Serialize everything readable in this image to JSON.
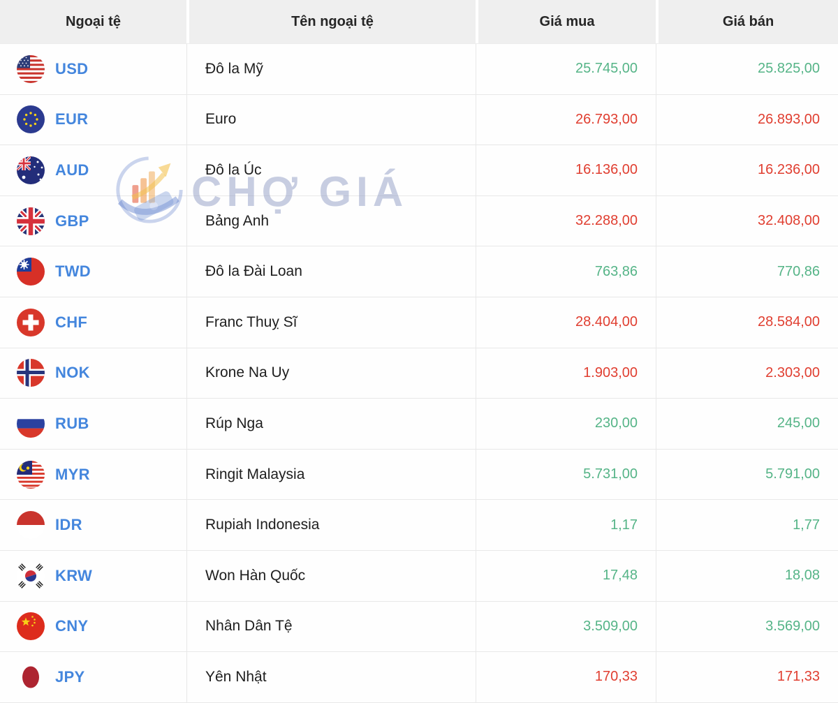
{
  "header": {
    "col_currency": "Ngoại tệ",
    "col_name": "Tên ngoại tệ",
    "col_buy": "Giá mua",
    "col_sell": "Giá bán"
  },
  "watermark": {
    "text": "CHỢ GIÁ",
    "logo": "cho-gia-logo-icon"
  },
  "colors": {
    "up": "#55b487",
    "down": "#e03e30",
    "code_blue": "#4486dd",
    "header_bg": "#efefef"
  },
  "rows": [
    {
      "code": "USD",
      "flag": "us-flag-icon",
      "name": "Đô la Mỹ",
      "buy": "25.745,00",
      "sell": "25.825,00",
      "trend": "up"
    },
    {
      "code": "EUR",
      "flag": "eu-flag-icon",
      "name": "Euro",
      "buy": "26.793,00",
      "sell": "26.893,00",
      "trend": "down"
    },
    {
      "code": "AUD",
      "flag": "australia-flag-icon",
      "name": "Đô la Úc",
      "buy": "16.136,00",
      "sell": "16.236,00",
      "trend": "down"
    },
    {
      "code": "GBP",
      "flag": "uk-flag-icon",
      "name": "Bảng Anh",
      "buy": "32.288,00",
      "sell": "32.408,00",
      "trend": "down"
    },
    {
      "code": "TWD",
      "flag": "taiwan-flag-icon",
      "name": "Đô la Đài Loan",
      "buy": "763,86",
      "sell": "770,86",
      "trend": "up"
    },
    {
      "code": "CHF",
      "flag": "switzerland-flag-icon",
      "name": "Franc Thuỵ Sĩ",
      "buy": "28.404,00",
      "sell": "28.584,00",
      "trend": "down"
    },
    {
      "code": "NOK",
      "flag": "norway-flag-icon",
      "name": "Krone Na Uy",
      "buy": "1.903,00",
      "sell": "2.303,00",
      "trend": "down"
    },
    {
      "code": "RUB",
      "flag": "russia-flag-icon",
      "name": "Rúp Nga",
      "buy": "230,00",
      "sell": "245,00",
      "trend": "up"
    },
    {
      "code": "MYR",
      "flag": "malaysia-flag-icon",
      "name": "Ringit Malaysia",
      "buy": "5.731,00",
      "sell": "5.791,00",
      "trend": "up"
    },
    {
      "code": "IDR",
      "flag": "indonesia-flag-icon",
      "name": "Rupiah Indonesia",
      "buy": "1,17",
      "sell": "1,77",
      "trend": "up"
    },
    {
      "code": "KRW",
      "flag": "south-korea-flag-icon",
      "name": "Won Hàn Quốc",
      "buy": "17,48",
      "sell": "18,08",
      "trend": "up"
    },
    {
      "code": "CNY",
      "flag": "china-flag-icon",
      "name": "Nhân Dân Tệ",
      "buy": "3.509,00",
      "sell": "3.569,00",
      "trend": "up"
    },
    {
      "code": "JPY",
      "flag": "japan-flag-icon",
      "name": "Yên Nhật",
      "buy": "170,33",
      "sell": "171,33",
      "trend": "down"
    }
  ]
}
